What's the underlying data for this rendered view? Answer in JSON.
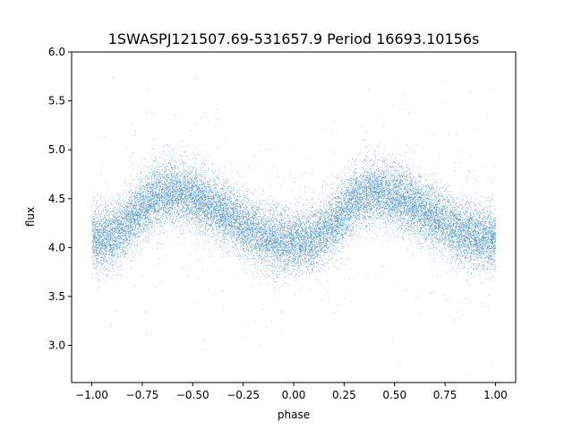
{
  "chart_data": {
    "type": "scatter",
    "title": "1SWASPJ121507.69-531657.9 Period 16693.10156s",
    "xlabel": "phase",
    "ylabel": "flux",
    "xlim": [
      -1.1,
      1.1
    ],
    "ylim": [
      2.62,
      6.0
    ],
    "x_ticks": [
      -1.0,
      -0.75,
      -0.5,
      -0.25,
      0.0,
      0.25,
      0.5,
      0.75,
      1.0
    ],
    "x_tick_labels": [
      "−1.00",
      "−0.75",
      "−0.50",
      "−0.25",
      "0.00",
      "0.25",
      "0.50",
      "0.75",
      "1.00"
    ],
    "y_ticks": [
      3.0,
      3.5,
      4.0,
      4.5,
      5.0,
      5.5,
      6.0
    ],
    "y_tick_labels": [
      "3.0",
      "3.5",
      "4.0",
      "4.5",
      "5.0",
      "5.5",
      "6.0"
    ],
    "grid": false,
    "marker_color": "#1f77b4",
    "series": [
      {
        "phase_range": [
          -1.0,
          1.0
        ],
        "n_points": 24000,
        "folded_curve": {
          "phase": [
            -1.0,
            -0.9,
            -0.8,
            -0.7,
            -0.6,
            -0.5,
            -0.4,
            -0.3,
            -0.2,
            -0.1,
            0.0,
            0.1,
            0.2,
            0.3,
            0.4,
            0.5,
            0.6,
            0.7,
            0.8,
            0.9,
            1.0
          ],
          "flux": [
            4.08,
            4.12,
            4.3,
            4.5,
            4.57,
            4.52,
            4.42,
            4.3,
            4.16,
            4.08,
            4.06,
            4.1,
            4.25,
            4.48,
            4.57,
            4.52,
            4.43,
            4.32,
            4.18,
            4.1,
            4.08
          ]
        },
        "scatter_sigma": 0.16
      }
    ]
  }
}
